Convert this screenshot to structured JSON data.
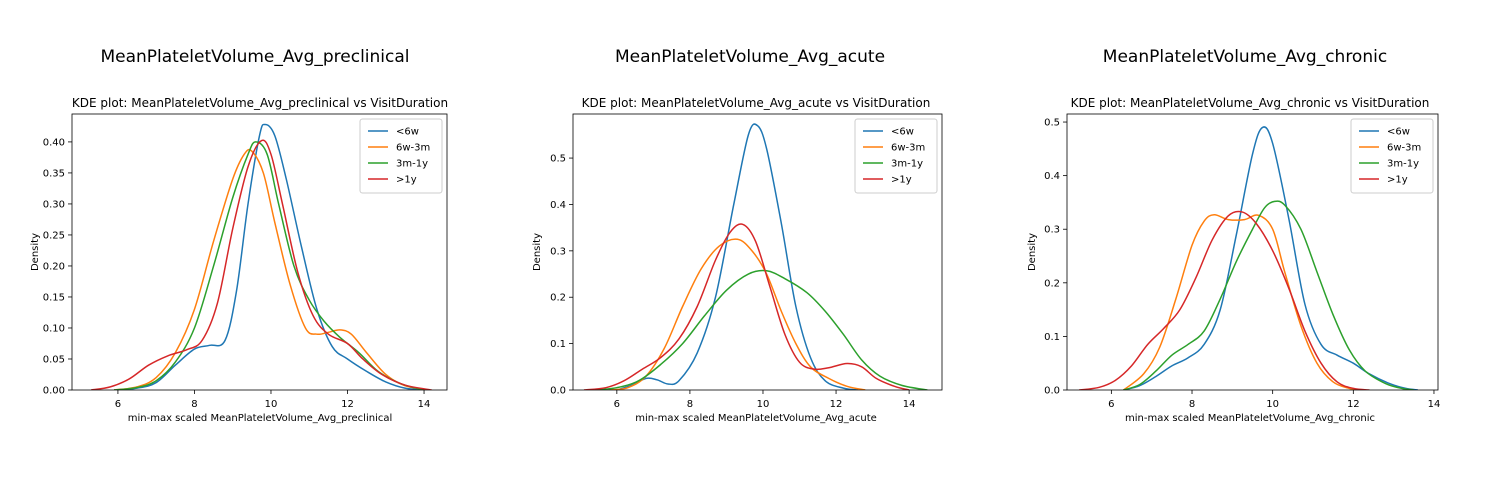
{
  "colors": {
    "c6w": "#1f77b4",
    "c6w3m": "#ff7f0e",
    "c3m1y": "#2ca02c",
    "c1y": "#d62728"
  },
  "chart_data": [
    {
      "type": "line",
      "suptitle": "MeanPlateletVolume_Avg_preclinical",
      "title": "KDE plot:  MeanPlateletVolume_Avg_preclinical vs VisitDuration",
      "xlabel": "min-max scaled MeanPlateletVolume_Avg_preclinical",
      "ylabel": "Density",
      "xlim": [
        4.8,
        14.6
      ],
      "ylim": [
        0,
        0.445
      ],
      "xticks": [
        6,
        8,
        10,
        12,
        14
      ],
      "yticks": [
        0.0,
        0.05,
        0.1,
        0.15,
        0.2,
        0.25,
        0.3,
        0.35,
        0.4
      ],
      "ytick_labels": [
        "0.00",
        "0.05",
        "0.10",
        "0.15",
        "0.20",
        "0.25",
        "0.30",
        "0.35",
        "0.40"
      ],
      "legend": "top-right",
      "grid": false,
      "series": [
        {
          "name": "<6w",
          "color": "#1f77b4",
          "points": [
            [
              5.9,
              0
            ],
            [
              6.5,
              0.003
            ],
            [
              7.0,
              0.012
            ],
            [
              7.5,
              0.04
            ],
            [
              8.0,
              0.066
            ],
            [
              8.4,
              0.072
            ],
            [
              8.8,
              0.08
            ],
            [
              9.1,
              0.16
            ],
            [
              9.4,
              0.3
            ],
            [
              9.7,
              0.41
            ],
            [
              9.85,
              0.428
            ],
            [
              10.1,
              0.41
            ],
            [
              10.4,
              0.34
            ],
            [
              10.8,
              0.23
            ],
            [
              11.2,
              0.13
            ],
            [
              11.6,
              0.07
            ],
            [
              12.0,
              0.05
            ],
            [
              12.5,
              0.03
            ],
            [
              13.0,
              0.013
            ],
            [
              13.5,
              0.003
            ],
            [
              14.0,
              0
            ]
          ]
        },
        {
          "name": "6w-3m",
          "color": "#ff7f0e",
          "points": [
            [
              5.9,
              0
            ],
            [
              6.5,
              0.005
            ],
            [
              7.0,
              0.02
            ],
            [
              7.5,
              0.06
            ],
            [
              8.0,
              0.13
            ],
            [
              8.5,
              0.24
            ],
            [
              9.0,
              0.34
            ],
            [
              9.3,
              0.38
            ],
            [
              9.5,
              0.385
            ],
            [
              9.8,
              0.35
            ],
            [
              10.1,
              0.27
            ],
            [
              10.5,
              0.17
            ],
            [
              10.9,
              0.1
            ],
            [
              11.2,
              0.09
            ],
            [
              11.5,
              0.093
            ],
            [
              11.8,
              0.097
            ],
            [
              12.1,
              0.09
            ],
            [
              12.5,
              0.06
            ],
            [
              13.0,
              0.025
            ],
            [
              13.5,
              0.007
            ],
            [
              14.1,
              0
            ]
          ]
        },
        {
          "name": "3m-1y",
          "color": "#2ca02c",
          "points": [
            [
              5.9,
              0
            ],
            [
              6.5,
              0.004
            ],
            [
              7.0,
              0.015
            ],
            [
              7.5,
              0.045
            ],
            [
              8.0,
              0.1
            ],
            [
              8.5,
              0.2
            ],
            [
              9.0,
              0.31
            ],
            [
              9.4,
              0.38
            ],
            [
              9.6,
              0.4
            ],
            [
              9.9,
              0.38
            ],
            [
              10.2,
              0.3
            ],
            [
              10.6,
              0.2
            ],
            [
              11.0,
              0.145
            ],
            [
              11.4,
              0.11
            ],
            [
              11.8,
              0.085
            ],
            [
              12.3,
              0.06
            ],
            [
              12.8,
              0.03
            ],
            [
              13.4,
              0.01
            ],
            [
              14.0,
              0
            ]
          ]
        },
        {
          "name": ">1y",
          "color": "#d62728",
          "points": [
            [
              5.3,
              0
            ],
            [
              5.8,
              0.005
            ],
            [
              6.3,
              0.018
            ],
            [
              6.8,
              0.04
            ],
            [
              7.3,
              0.055
            ],
            [
              7.8,
              0.065
            ],
            [
              8.2,
              0.08
            ],
            [
              8.6,
              0.14
            ],
            [
              9.0,
              0.26
            ],
            [
              9.4,
              0.36
            ],
            [
              9.75,
              0.402
            ],
            [
              10.0,
              0.38
            ],
            [
              10.3,
              0.3
            ],
            [
              10.7,
              0.19
            ],
            [
              11.1,
              0.12
            ],
            [
              11.5,
              0.09
            ],
            [
              12.0,
              0.075
            ],
            [
              12.4,
              0.05
            ],
            [
              12.9,
              0.025
            ],
            [
              13.5,
              0.008
            ],
            [
              14.2,
              0
            ]
          ]
        }
      ]
    },
    {
      "type": "line",
      "suptitle": "MeanPlateletVolume_Avg_acute",
      "title": "KDE plot:  MeanPlateletVolume_Avg_acute vs VisitDuration",
      "xlabel": "min-max scaled MeanPlateletVolume_Avg_acute",
      "ylabel": "Density",
      "xlim": [
        4.8,
        14.9
      ],
      "ylim": [
        0,
        0.595
      ],
      "xticks": [
        6,
        8,
        10,
        12,
        14
      ],
      "yticks": [
        0.0,
        0.1,
        0.2,
        0.3,
        0.4,
        0.5
      ],
      "ytick_labels": [
        "0.0",
        "0.1",
        "0.2",
        "0.3",
        "0.4",
        "0.5"
      ],
      "legend": "top-right",
      "grid": false,
      "series": [
        {
          "name": "<6w",
          "color": "#1f77b4",
          "points": [
            [
              6.0,
              0
            ],
            [
              6.4,
              0.01
            ],
            [
              6.8,
              0.025
            ],
            [
              7.1,
              0.022
            ],
            [
              7.4,
              0.013
            ],
            [
              7.7,
              0.02
            ],
            [
              8.2,
              0.08
            ],
            [
              8.7,
              0.2
            ],
            [
              9.2,
              0.4
            ],
            [
              9.6,
              0.55
            ],
            [
              9.85,
              0.57
            ],
            [
              10.1,
              0.52
            ],
            [
              10.5,
              0.36
            ],
            [
              10.9,
              0.18
            ],
            [
              11.3,
              0.07
            ],
            [
              11.7,
              0.02
            ],
            [
              12.2,
              0.004
            ],
            [
              12.6,
              0
            ]
          ]
        },
        {
          "name": "6w-3m",
          "color": "#ff7f0e",
          "points": [
            [
              5.8,
              0
            ],
            [
              6.3,
              0.005
            ],
            [
              6.8,
              0.03
            ],
            [
              7.3,
              0.09
            ],
            [
              7.8,
              0.18
            ],
            [
              8.3,
              0.26
            ],
            [
              8.8,
              0.31
            ],
            [
              9.3,
              0.325
            ],
            [
              9.7,
              0.3
            ],
            [
              10.1,
              0.25
            ],
            [
              10.5,
              0.17
            ],
            [
              10.9,
              0.1
            ],
            [
              11.3,
              0.05
            ],
            [
              11.8,
              0.025
            ],
            [
              12.3,
              0.008
            ],
            [
              12.8,
              0
            ]
          ]
        },
        {
          "name": "3m-1y",
          "color": "#2ca02c",
          "points": [
            [
              5.4,
              0
            ],
            [
              6.0,
              0.005
            ],
            [
              6.6,
              0.02
            ],
            [
              7.2,
              0.055
            ],
            [
              7.8,
              0.1
            ],
            [
              8.4,
              0.16
            ],
            [
              9.0,
              0.215
            ],
            [
              9.6,
              0.25
            ],
            [
              10.1,
              0.257
            ],
            [
              10.6,
              0.24
            ],
            [
              11.2,
              0.21
            ],
            [
              11.7,
              0.17
            ],
            [
              12.2,
              0.12
            ],
            [
              12.7,
              0.065
            ],
            [
              13.2,
              0.03
            ],
            [
              13.8,
              0.01
            ],
            [
              14.5,
              0
            ]
          ]
        },
        {
          "name": ">1y",
          "color": "#d62728",
          "points": [
            [
              5.1,
              0
            ],
            [
              5.7,
              0.005
            ],
            [
              6.2,
              0.02
            ],
            [
              6.7,
              0.045
            ],
            [
              7.2,
              0.07
            ],
            [
              7.7,
              0.11
            ],
            [
              8.2,
              0.18
            ],
            [
              8.7,
              0.28
            ],
            [
              9.1,
              0.34
            ],
            [
              9.45,
              0.357
            ],
            [
              9.8,
              0.32
            ],
            [
              10.2,
              0.22
            ],
            [
              10.6,
              0.12
            ],
            [
              11.0,
              0.06
            ],
            [
              11.4,
              0.045
            ],
            [
              11.8,
              0.048
            ],
            [
              12.3,
              0.057
            ],
            [
              12.7,
              0.05
            ],
            [
              13.1,
              0.025
            ],
            [
              13.6,
              0.008
            ],
            [
              14.0,
              0
            ]
          ]
        }
      ]
    },
    {
      "type": "line",
      "suptitle": "MeanPlateletVolume_Avg_chronic",
      "title": "KDE plot:  MeanPlateletVolume_Avg_chronic vs VisitDuration",
      "xlabel": "min-max scaled MeanPlateletVolume_Avg_chronic",
      "ylabel": "Density",
      "xlim": [
        4.9,
        14.1
      ],
      "ylim": [
        0,
        0.515
      ],
      "xticks": [
        6,
        8,
        10,
        12,
        14
      ],
      "yticks": [
        0.0,
        0.1,
        0.2,
        0.3,
        0.4,
        0.5
      ],
      "ytick_labels": [
        "0.0",
        "0.1",
        "0.2",
        "0.3",
        "0.4",
        "0.5"
      ],
      "legend": "top-right",
      "grid": false,
      "series": [
        {
          "name": "<6w",
          "color": "#1f77b4",
          "points": [
            [
              6.3,
              0
            ],
            [
              6.7,
              0.008
            ],
            [
              7.1,
              0.025
            ],
            [
              7.5,
              0.045
            ],
            [
              7.9,
              0.06
            ],
            [
              8.3,
              0.085
            ],
            [
              8.7,
              0.15
            ],
            [
              9.1,
              0.29
            ],
            [
              9.5,
              0.44
            ],
            [
              9.75,
              0.49
            ],
            [
              10.0,
              0.46
            ],
            [
              10.4,
              0.32
            ],
            [
              10.8,
              0.16
            ],
            [
              11.2,
              0.085
            ],
            [
              11.6,
              0.065
            ],
            [
              12.0,
              0.05
            ],
            [
              12.4,
              0.03
            ],
            [
              12.9,
              0.012
            ],
            [
              13.3,
              0.003
            ],
            [
              13.6,
              0
            ]
          ]
        },
        {
          "name": "6w-3m",
          "color": "#ff7f0e",
          "points": [
            [
              6.3,
              0
            ],
            [
              6.8,
              0.03
            ],
            [
              7.2,
              0.08
            ],
            [
              7.6,
              0.17
            ],
            [
              8.0,
              0.27
            ],
            [
              8.3,
              0.315
            ],
            [
              8.55,
              0.327
            ],
            [
              8.9,
              0.318
            ],
            [
              9.3,
              0.318
            ],
            [
              9.65,
              0.326
            ],
            [
              10.0,
              0.3
            ],
            [
              10.3,
              0.22
            ],
            [
              10.7,
              0.12
            ],
            [
              11.1,
              0.05
            ],
            [
              11.5,
              0.015
            ],
            [
              11.9,
              0.003
            ],
            [
              12.2,
              0
            ]
          ]
        },
        {
          "name": "3m-1y",
          "color": "#2ca02c",
          "points": [
            [
              6.3,
              0
            ],
            [
              6.7,
              0.01
            ],
            [
              7.1,
              0.035
            ],
            [
              7.5,
              0.065
            ],
            [
              7.9,
              0.085
            ],
            [
              8.3,
              0.11
            ],
            [
              8.7,
              0.17
            ],
            [
              9.1,
              0.24
            ],
            [
              9.5,
              0.3
            ],
            [
              9.8,
              0.34
            ],
            [
              10.05,
              0.352
            ],
            [
              10.3,
              0.345
            ],
            [
              10.7,
              0.3
            ],
            [
              11.1,
              0.22
            ],
            [
              11.5,
              0.14
            ],
            [
              11.9,
              0.075
            ],
            [
              12.3,
              0.035
            ],
            [
              12.8,
              0.012
            ],
            [
              13.2,
              0.003
            ],
            [
              13.5,
              0
            ]
          ]
        },
        {
          "name": ">1y",
          "color": "#d62728",
          "points": [
            [
              5.2,
              0
            ],
            [
              5.7,
              0.005
            ],
            [
              6.1,
              0.018
            ],
            [
              6.5,
              0.045
            ],
            [
              6.9,
              0.085
            ],
            [
              7.3,
              0.115
            ],
            [
              7.7,
              0.15
            ],
            [
              8.1,
              0.21
            ],
            [
              8.5,
              0.28
            ],
            [
              8.9,
              0.325
            ],
            [
              9.25,
              0.332
            ],
            [
              9.6,
              0.31
            ],
            [
              10.0,
              0.26
            ],
            [
              10.4,
              0.19
            ],
            [
              10.8,
              0.11
            ],
            [
              11.2,
              0.05
            ],
            [
              11.6,
              0.015
            ],
            [
              12.0,
              0.003
            ],
            [
              12.4,
              0
            ]
          ]
        }
      ]
    }
  ]
}
